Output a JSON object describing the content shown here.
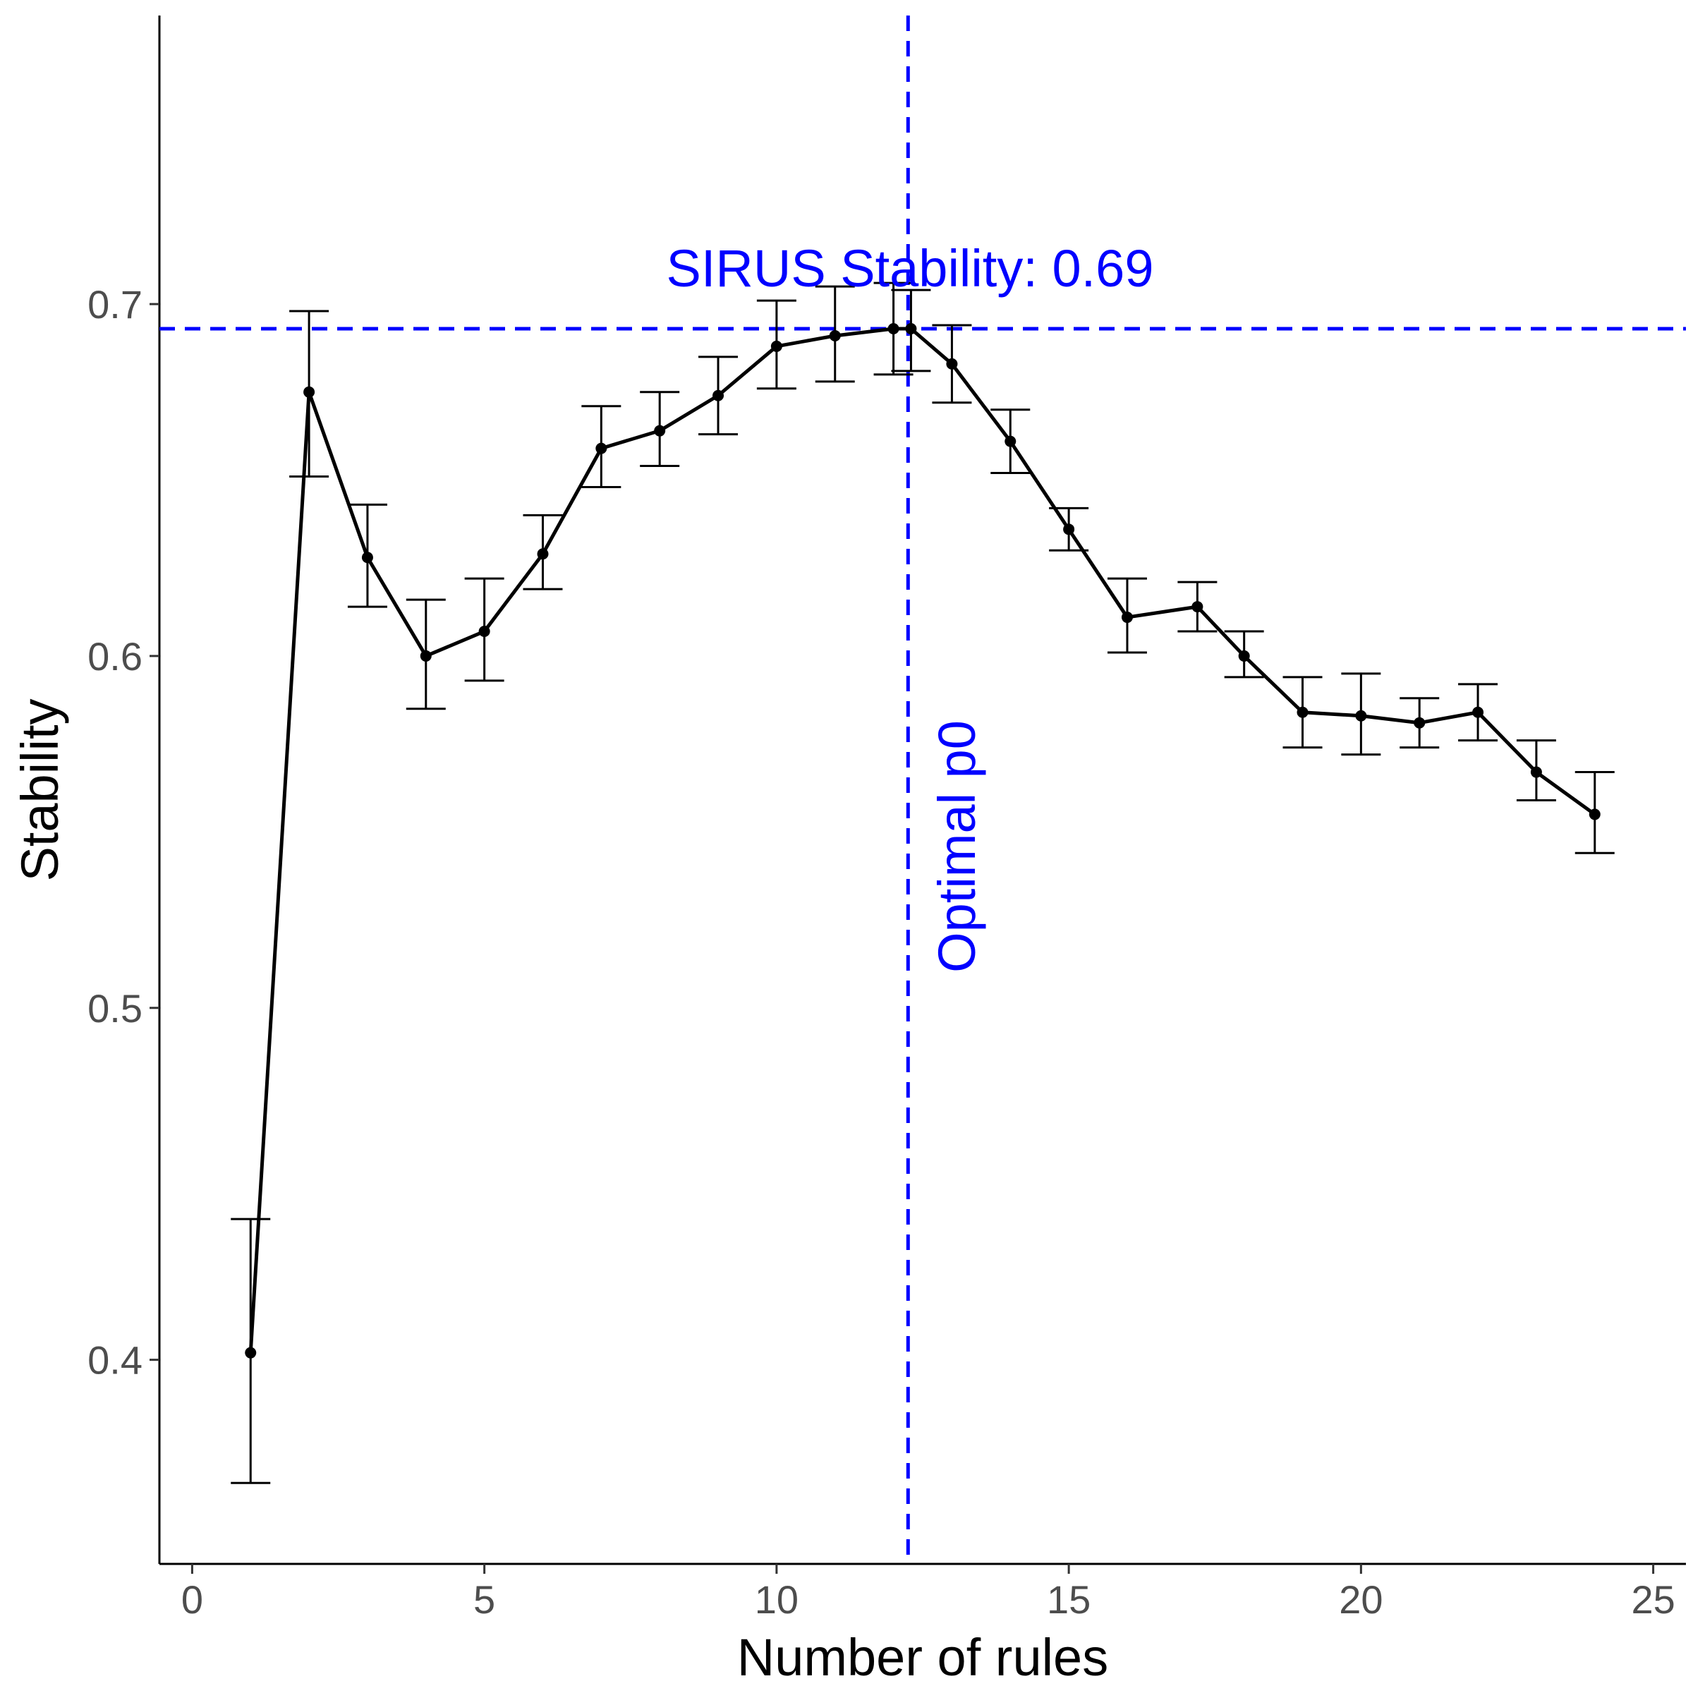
{
  "chart_data": {
    "type": "line",
    "title": "",
    "xlabel": "Number of rules",
    "ylabel": "Stability",
    "xlim": [
      -0.56,
      25.56
    ],
    "ylim": [
      0.342,
      0.782
    ],
    "x_ticks": [
      0,
      5,
      10,
      15,
      20,
      25
    ],
    "x_tick_labels": [
      "0",
      "5",
      "10",
      "15",
      "20",
      "25"
    ],
    "y_ticks": [
      0.4,
      0.5,
      0.6,
      0.7
    ],
    "y_tick_labels": [
      "0.4",
      "0.5",
      "0.6",
      "0.7"
    ],
    "grid": false,
    "legend": "none",
    "series": [
      {
        "color": "#000000",
        "points": [
          {
            "x": 1,
            "y": 0.402,
            "lo": 0.365,
            "hi": 0.44
          },
          {
            "x": 2,
            "y": 0.675,
            "lo": 0.651,
            "hi": 0.698
          },
          {
            "x": 3,
            "y": 0.628,
            "lo": 0.614,
            "hi": 0.643
          },
          {
            "x": 4,
            "y": 0.6,
            "lo": 0.585,
            "hi": 0.616
          },
          {
            "x": 5,
            "y": 0.607,
            "lo": 0.593,
            "hi": 0.622
          },
          {
            "x": 6,
            "y": 0.629,
            "lo": 0.619,
            "hi": 0.64
          },
          {
            "x": 7,
            "y": 0.659,
            "lo": 0.648,
            "hi": 0.671
          },
          {
            "x": 8,
            "y": 0.664,
            "lo": 0.654,
            "hi": 0.675
          },
          {
            "x": 9,
            "y": 0.674,
            "lo": 0.663,
            "hi": 0.685
          },
          {
            "x": 10,
            "y": 0.688,
            "lo": 0.676,
            "hi": 0.701
          },
          {
            "x": 11,
            "y": 0.691,
            "lo": 0.678,
            "hi": 0.705
          },
          {
            "x": 12,
            "y": 0.693,
            "lo": 0.68,
            "hi": 0.706
          },
          {
            "x": 12.3,
            "y": 0.693,
            "lo": 0.681,
            "hi": 0.704
          },
          {
            "x": 13,
            "y": 0.683,
            "lo": 0.672,
            "hi": 0.694
          },
          {
            "x": 14,
            "y": 0.661,
            "lo": 0.652,
            "hi": 0.67
          },
          {
            "x": 15,
            "y": 0.636,
            "lo": 0.63,
            "hi": 0.642
          },
          {
            "x": 16,
            "y": 0.611,
            "lo": 0.601,
            "hi": 0.622
          },
          {
            "x": 17.2,
            "y": 0.614,
            "lo": 0.607,
            "hi": 0.621
          },
          {
            "x": 18,
            "y": 0.6,
            "lo": 0.594,
            "hi": 0.607
          },
          {
            "x": 19,
            "y": 0.584,
            "lo": 0.574,
            "hi": 0.594
          },
          {
            "x": 20,
            "y": 0.583,
            "lo": 0.572,
            "hi": 0.595
          },
          {
            "x": 21,
            "y": 0.581,
            "lo": 0.574,
            "hi": 0.588
          },
          {
            "x": 22,
            "y": 0.584,
            "lo": 0.576,
            "hi": 0.592
          },
          {
            "x": 23,
            "y": 0.567,
            "lo": 0.559,
            "hi": 0.576
          },
          {
            "x": 24,
            "y": 0.555,
            "lo": 0.544,
            "hi": 0.567
          }
        ]
      }
    ],
    "reference_lines": {
      "horizontal": {
        "y": 0.693,
        "color": "#0000ff",
        "style": "dashed"
      },
      "vertical": {
        "x": 12.25,
        "color": "#0000ff",
        "style": "dashed"
      }
    },
    "annotations": {
      "stability_text": "SIRUS Stability: 0.69",
      "optimal_text": "Optimal p0",
      "color": "#0000ff"
    }
  }
}
